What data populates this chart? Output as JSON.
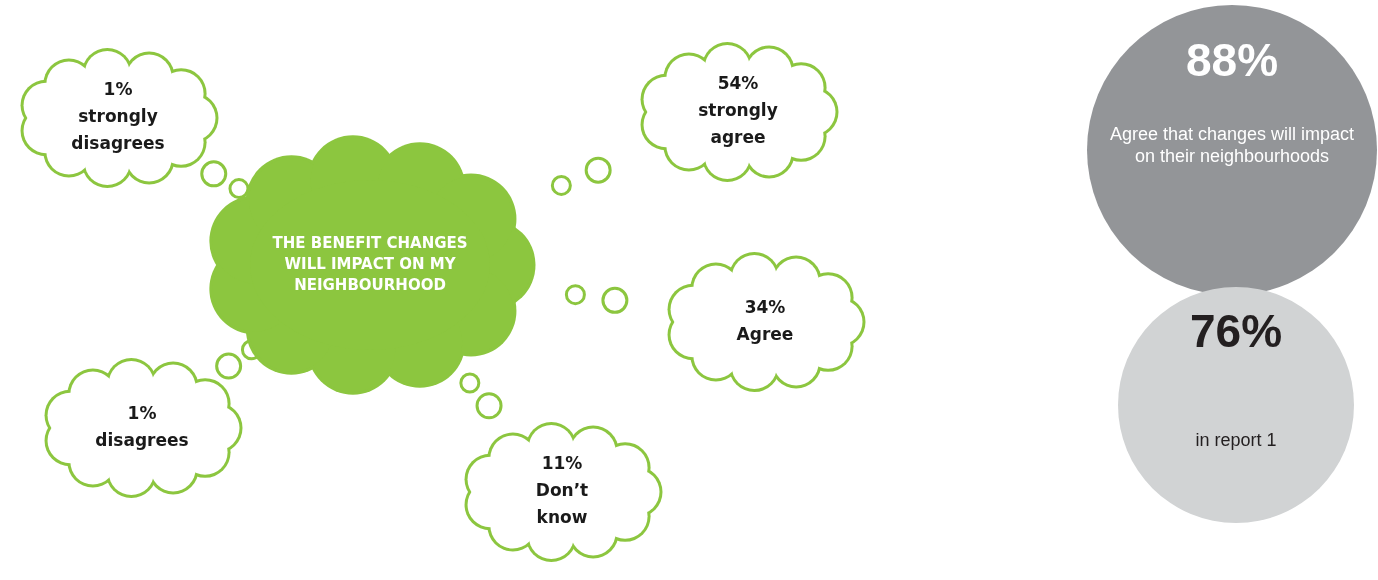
{
  "chart_data": [
    {
      "type": "other",
      "title": "THE BENEFIT CHANGES WILL IMPACT ON MY NEIGHBOURHOOD",
      "categories": [
        "strongly disagrees",
        "strongly agree",
        "Agree",
        "disagrees",
        "Don’t know"
      ],
      "values": [
        1,
        54,
        34,
        1,
        11
      ],
      "value_labels": [
        "1%",
        "54%",
        "34%",
        "1%",
        "11%"
      ],
      "color": "#8cc63f",
      "colors": [
        "#ffffff",
        "#ffffff",
        "#ffffff",
        "#ffffff",
        "#ffffff"
      ]
    },
    {
      "type": "other",
      "categories": [
        "Agree that changes will impact on their neighbourhoods",
        "in report 1"
      ],
      "values": [
        88,
        76
      ],
      "value_labels": [
        "88%",
        "76%"
      ],
      "colors": [
        "#939598",
        "#d1d3d4"
      ]
    }
  ]
}
